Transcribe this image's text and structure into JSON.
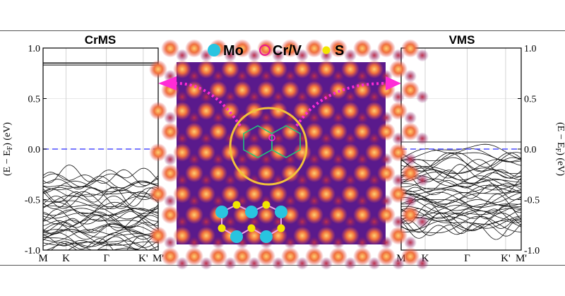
{
  "figure": {
    "legend": [
      {
        "label": "Mo",
        "marker": "filled-circle",
        "color": "#29c4e0"
      },
      {
        "label": "Cr/V",
        "marker": "hollow-circle",
        "color": "#e8168f"
      },
      {
        "label": "S",
        "marker": "filled-circle",
        "color": "#f2e600"
      }
    ],
    "accent_color": "#ff2bd6",
    "fermi_line_color": "#4d4dff",
    "image_panel": {
      "description_icon": "stm-atomic-image"
    }
  },
  "chart_data": [
    {
      "type": "line",
      "title": "CrMS",
      "ylabel": "(E − E",
      "ylabel_sub": "F",
      "ylabel_tail": ") (eV)",
      "ylim": [
        -1.0,
        1.0
      ],
      "yticks": [
        "1.0",
        "0.5",
        "0.0",
        "-0.5",
        "-1.0"
      ],
      "xticks": [
        "M",
        "K",
        "Γ",
        "K'",
        "M'"
      ],
      "fermi_level": 0.0,
      "flat_bands": [
        0.855,
        0.845,
        0.83
      ],
      "band_edge": -0.23,
      "grid": true
    },
    {
      "type": "line",
      "title": "VMS",
      "ylabel": "(E − E",
      "ylabel_sub": "F",
      "ylabel_tail": ") (eV)",
      "ylim": [
        -1.0,
        1.0
      ],
      "yticks": [
        "1.0",
        "0.5",
        "0.0",
        "-0.5",
        "-1.0"
      ],
      "xticks": [
        "M",
        "K",
        "Γ",
        "K'",
        "M'"
      ],
      "fermi_level": 0.0,
      "flat_bands": [
        0.07
      ],
      "band_edge": 0.0,
      "grid": true
    }
  ]
}
